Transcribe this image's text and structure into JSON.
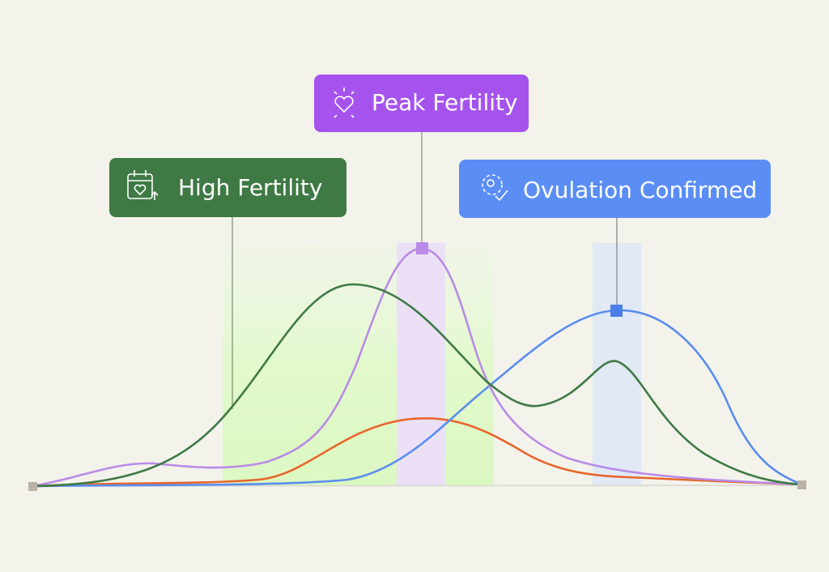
{
  "callouts": [
    {
      "label": "High Fertility"
    },
    {
      "label": "Peak Fertility"
    },
    {
      "label": "Ovulation Confirmed"
    }
  ]
}
